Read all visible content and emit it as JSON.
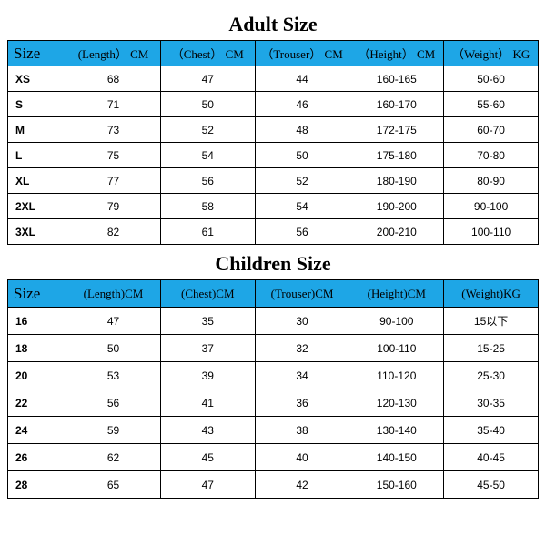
{
  "colors": {
    "header_bg": "#1ea6e6",
    "border": "#000000",
    "background": "#ffffff"
  },
  "adult": {
    "title": "Adult Size",
    "columns": [
      "Size",
      "(Length） CM",
      "（Chest） CM",
      "（Trouser） CM",
      "（Height） CM",
      "（Weight） KG"
    ],
    "rows": [
      [
        "XS",
        "68",
        "47",
        "44",
        "160-165",
        "50-60"
      ],
      [
        "S",
        "71",
        "50",
        "46",
        "160-170",
        "55-60"
      ],
      [
        "M",
        "73",
        "52",
        "48",
        "172-175",
        "60-70"
      ],
      [
        "L",
        "75",
        "54",
        "50",
        "175-180",
        "70-80"
      ],
      [
        "XL",
        "77",
        "56",
        "52",
        "180-190",
        "80-90"
      ],
      [
        "2XL",
        "79",
        "58",
        "54",
        "190-200",
        "90-100"
      ],
      [
        "3XL",
        "82",
        "61",
        "56",
        "200-210",
        "100-110"
      ]
    ]
  },
  "children": {
    "title": "Children Size",
    "columns": [
      "Size",
      "(Length)CM",
      "(Chest)CM",
      "(Trouser)CM",
      "(Height)CM",
      "(Weight)KG"
    ],
    "rows": [
      [
        "16",
        "47",
        "35",
        "30",
        "90-100",
        "15以下"
      ],
      [
        "18",
        "50",
        "37",
        "32",
        "100-110",
        "15-25"
      ],
      [
        "20",
        "53",
        "39",
        "34",
        "110-120",
        "25-30"
      ],
      [
        "22",
        "56",
        "41",
        "36",
        "120-130",
        "30-35"
      ],
      [
        "24",
        "59",
        "43",
        "38",
        "130-140",
        "35-40"
      ],
      [
        "26",
        "62",
        "45",
        "40",
        "140-150",
        "40-45"
      ],
      [
        "28",
        "65",
        "47",
        "42",
        "150-160",
        "45-50"
      ]
    ]
  }
}
